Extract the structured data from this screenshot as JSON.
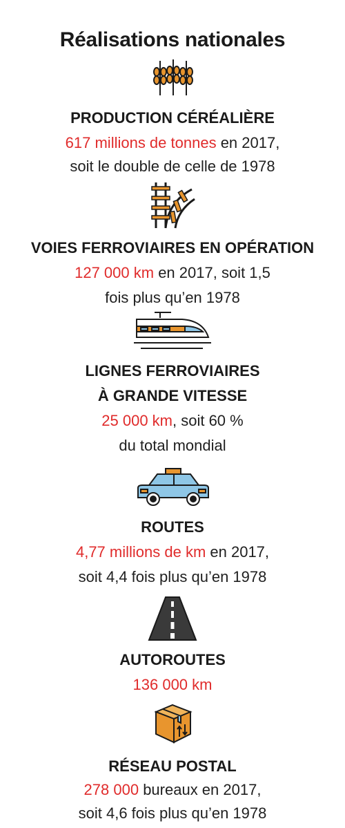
{
  "colors": {
    "accent": "#e02b2b",
    "text": "#1a1a1a",
    "icon_outline": "#1a1a1a",
    "icon_orange": "#e8952e",
    "icon_blue": "#8ec6e6"
  },
  "title": "Réalisations nationales",
  "sections": [
    {
      "icon": "wheat-icon",
      "heading": "PRODUCTION CÉRÉALIÈRE",
      "line1_highlight": "617 millions de tonnes",
      "line1_rest": " en 2017,",
      "line2": "soit le double de celle de 1978"
    },
    {
      "icon": "railway-tracks-icon",
      "heading": "VOIES FERROVIAIRES EN OPÉRATION",
      "line1_highlight": "127 000 km",
      "line1_rest": " en 2017, soit 1,5",
      "line2": "fois plus qu’en 1978"
    },
    {
      "icon": "high-speed-train-icon",
      "heading_line1": "LIGNES FERROVIAIRES",
      "heading_line2": "À GRANDE VITESSE",
      "line1_highlight": "25 000 km",
      "line1_rest": ", soit 60 %",
      "line2": "du total mondial"
    },
    {
      "icon": "car-icon",
      "heading": "ROUTES",
      "line1_highlight": "4,77 millions de km",
      "line1_rest": " en 2017,",
      "line2": "soit 4,4 fois plus qu’en 1978"
    },
    {
      "icon": "highway-icon",
      "heading": "AUTOROUTES",
      "line1_highlight": "136 000 km"
    },
    {
      "icon": "parcel-box-icon",
      "heading": "RÉSEAU POSTAL",
      "line1_highlight": "278 000",
      "line1_rest": " bureaux en 2017,",
      "line2": "soit 4,6 fois plus qu’en 1978"
    }
  ]
}
